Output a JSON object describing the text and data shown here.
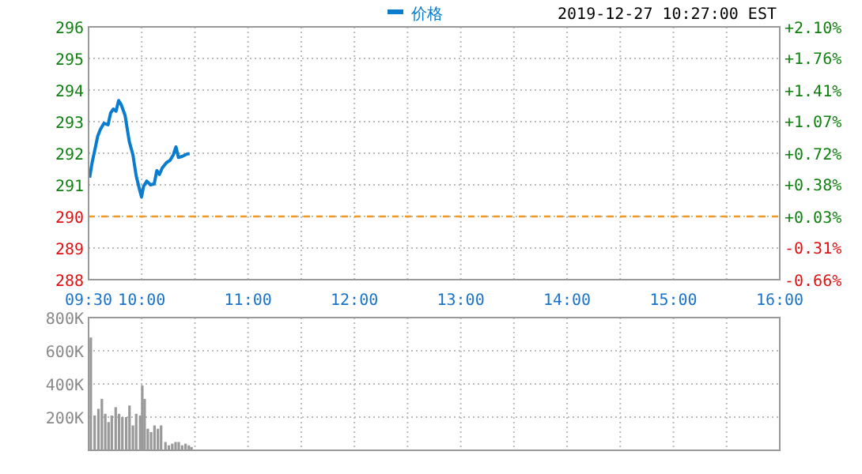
{
  "chart_data": [
    {
      "type": "line",
      "subtitle": "2019-12-27 10:27:00 EST",
      "x": [
        9.51,
        9.533,
        9.56,
        9.585,
        9.61,
        9.645,
        9.683,
        9.708,
        9.733,
        9.758,
        9.783,
        9.808,
        9.843,
        9.883,
        9.917,
        9.948,
        9.978,
        9.998,
        10.017,
        10.047,
        10.082,
        10.117,
        10.142,
        10.167,
        10.192,
        10.232,
        10.267,
        10.297,
        10.322,
        10.345,
        10.38,
        10.43,
        10.45
      ],
      "series": [
        {
          "name": "价格",
          "color": "#0a7ccf",
          "values": [
            291.23,
            291.7,
            292.12,
            292.53,
            292.75,
            292.95,
            292.9,
            293.28,
            293.4,
            293.33,
            293.67,
            293.53,
            293.2,
            292.37,
            291.95,
            291.28,
            290.87,
            290.62,
            290.95,
            291.12,
            291.0,
            291.03,
            291.45,
            291.33,
            291.53,
            291.7,
            291.78,
            291.95,
            292.2,
            291.87,
            291.9,
            291.98,
            291.98
          ]
        }
      ],
      "xlim": [
        9.5,
        16
      ],
      "xticks": [
        {
          "value": 9.5,
          "label": "09:30"
        },
        {
          "value": 10,
          "label": "10:00"
        },
        {
          "value": 10.5,
          "label": null
        },
        {
          "value": 11,
          "label": "11:00"
        },
        {
          "value": 11.5,
          "label": null
        },
        {
          "value": 12,
          "label": "12:00"
        },
        {
          "value": 12.5,
          "label": null
        },
        {
          "value": 13,
          "label": "13:00"
        },
        {
          "value": 13.5,
          "label": null
        },
        {
          "value": 14,
          "label": "14:00"
        },
        {
          "value": 14.5,
          "label": null
        },
        {
          "value": 15,
          "label": "15:00"
        },
        {
          "value": 15.5,
          "label": null
        },
        {
          "value": 16,
          "label": "16:00"
        }
      ],
      "ylim": [
        288,
        296
      ],
      "yticks": [
        288,
        289,
        290,
        291,
        292,
        293,
        294,
        295,
        296
      ],
      "y2lim": [
        -0.66,
        2.1
      ],
      "y2ticks": [
        {
          "value": -0.66,
          "label": "-0.66%"
        },
        {
          "value": -0.31,
          "label": "-0.31%"
        },
        {
          "value": 0.03,
          "label": "+0.03%"
        },
        {
          "value": 0.38,
          "label": "+0.38%"
        },
        {
          "value": 0.72,
          "label": "+0.72%"
        },
        {
          "value": 1.07,
          "label": "+1.07%"
        },
        {
          "value": 1.41,
          "label": "+1.41%"
        },
        {
          "value": 1.76,
          "label": "+1.76%"
        },
        {
          "value": 2.1,
          "label": "+2.10%"
        }
      ],
      "ref_lines": [
        {
          "axis": "y",
          "value": 290,
          "color": "#f39a1e",
          "line_style": "dashed"
        }
      ],
      "grid": true,
      "legend": "top",
      "line_style": "solid"
    },
    {
      "type": "bar",
      "x": [
        9.521,
        9.557,
        9.593,
        9.625,
        9.657,
        9.688,
        9.718,
        9.755,
        9.787,
        9.818,
        9.854,
        9.885,
        9.917,
        9.948,
        9.985,
        10.005,
        10.027,
        10.057,
        10.088,
        10.12,
        10.152,
        10.182,
        10.223,
        10.255,
        10.287,
        10.318,
        10.348,
        10.38,
        10.412,
        10.443,
        10.468
      ],
      "series": [
        {
          "color": "#999999",
          "values": [
            680000,
            210000,
            250000,
            310000,
            220000,
            170000,
            210000,
            260000,
            220000,
            200000,
            200000,
            270000,
            150000,
            220000,
            210000,
            390000,
            310000,
            130000,
            110000,
            150000,
            130000,
            150000,
            50000,
            30000,
            40000,
            50000,
            50000,
            30000,
            40000,
            30000,
            20000
          ]
        }
      ],
      "xlim": [
        9.5,
        16
      ],
      "xticks": [
        {
          "value": 9.5,
          "label": null
        },
        {
          "value": 10,
          "label": null
        },
        {
          "value": 10.5,
          "label": null
        },
        {
          "value": 11,
          "label": null
        },
        {
          "value": 11.5,
          "label": null
        },
        {
          "value": 12,
          "label": null
        },
        {
          "value": 12.5,
          "label": null
        },
        {
          "value": 13,
          "label": null
        },
        {
          "value": 13.5,
          "label": null
        },
        {
          "value": 14,
          "label": null
        },
        {
          "value": 14.5,
          "label": null
        },
        {
          "value": 15,
          "label": null
        },
        {
          "value": 15.5,
          "label": null
        },
        {
          "value": 16,
          "label": null
        }
      ],
      "ylim": [
        0,
        800000
      ],
      "yticks": [
        {
          "value": 200000,
          "label": "200K"
        },
        {
          "value": 400000,
          "label": "400K"
        },
        {
          "value": 600000,
          "label": "600K"
        },
        {
          "value": 800000,
          "label": "800K"
        }
      ],
      "grid": true,
      "tick_labels": "y"
    }
  ]
}
